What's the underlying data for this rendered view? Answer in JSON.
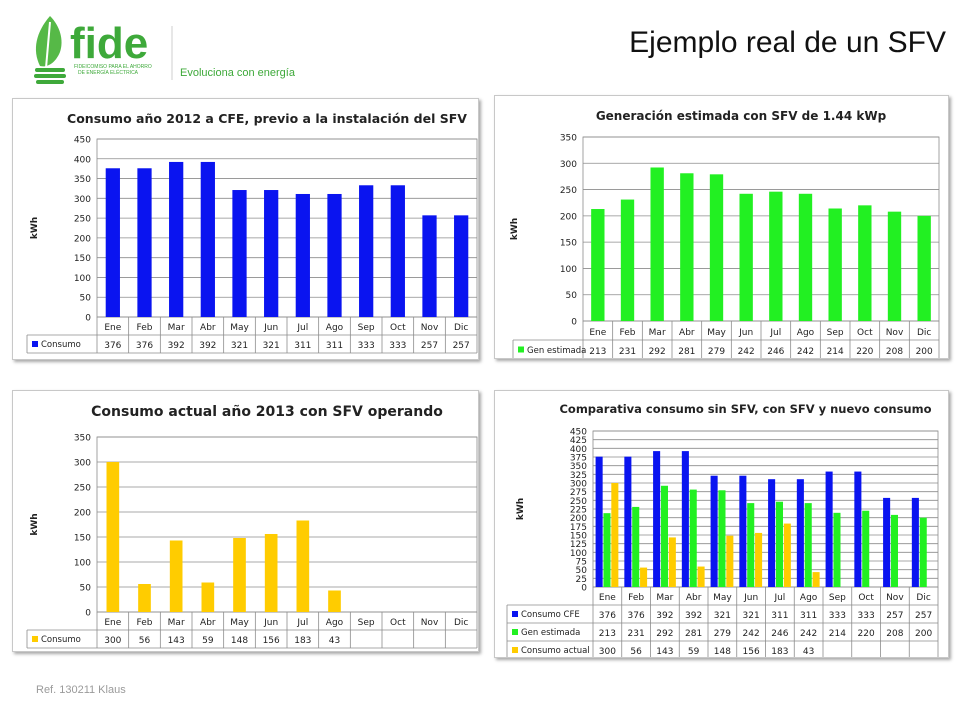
{
  "header": {
    "title": "Ejemplo real de un SFV",
    "brand": "fide",
    "brand_subtitle_1": "FIDEICOMISO PARA EL AHORRO",
    "brand_subtitle_2": "DE ENERGÍA ELÉCTRICA",
    "tagline": "Evoluciona con energía",
    "brand_color": "#3ea93a"
  },
  "footer": {
    "ref": "Ref. 130211 Klaus"
  },
  "colors": {
    "blue": "#0a14f0",
    "green": "#22f022",
    "yellow": "#ffcc00"
  },
  "chart_data": [
    {
      "type": "bar",
      "title": "Consumo año 2012  a CFE, previo a la instalación del SFV",
      "ylabel": "kWh",
      "ylim": [
        0,
        450
      ],
      "ystep": 50,
      "grid": true,
      "categories": [
        "Ene",
        "Feb",
        "Mar",
        "Abr",
        "May",
        "Jun",
        "Jul",
        "Ago",
        "Sep",
        "Oct",
        "Nov",
        "Dic"
      ],
      "series": [
        {
          "name": "Consumo",
          "color": "blue",
          "values": [
            376,
            376,
            392,
            392,
            321,
            321,
            311,
            311,
            333,
            333,
            257,
            257
          ]
        }
      ]
    },
    {
      "type": "bar",
      "title": "Generación estimada con SFV de 1.44 kWp",
      "ylabel": "kWh",
      "ylim": [
        0,
        350
      ],
      "ystep": 50,
      "grid": true,
      "categories": [
        "Ene",
        "Feb",
        "Mar",
        "Abr",
        "May",
        "Jun",
        "Jul",
        "Ago",
        "Sep",
        "Oct",
        "Nov",
        "Dic"
      ],
      "series": [
        {
          "name": "Gen estimada",
          "color": "green",
          "values": [
            213,
            231,
            292,
            281,
            279,
            242,
            246,
            242,
            214,
            220,
            208,
            200
          ]
        }
      ]
    },
    {
      "type": "bar",
      "title": "Consumo actual  año 2013 con SFV operando",
      "ylabel": "kWh",
      "ylim": [
        0,
        350
      ],
      "ystep": 50,
      "grid": true,
      "categories": [
        "Ene",
        "Feb",
        "Mar",
        "Abr",
        "May",
        "Jun",
        "Jul",
        "Ago",
        "Sep",
        "Oct",
        "Nov",
        "Dic"
      ],
      "series": [
        {
          "name": "Consumo",
          "color": "yellow",
          "values": [
            300,
            56,
            143,
            59,
            148,
            156,
            183,
            43,
            null,
            null,
            null,
            null
          ]
        }
      ]
    },
    {
      "type": "bar",
      "title": "Comparativa consumo sin SFV, con SFV y nuevo consumo",
      "ylabel": "kWh",
      "ylim": [
        0,
        450
      ],
      "ystep": 25,
      "grid": true,
      "categories": [
        "Ene",
        "Feb",
        "Mar",
        "Abr",
        "May",
        "Jun",
        "Jul",
        "Ago",
        "Sep",
        "Oct",
        "Nov",
        "Dic"
      ],
      "series": [
        {
          "name": "Consumo CFE",
          "color": "blue",
          "values": [
            376,
            376,
            392,
            392,
            321,
            321,
            311,
            311,
            333,
            333,
            257,
            257
          ]
        },
        {
          "name": "Gen estimada",
          "color": "green",
          "values": [
            213,
            231,
            292,
            281,
            279,
            242,
            246,
            242,
            214,
            220,
            208,
            200
          ]
        },
        {
          "name": "Consumo actual",
          "color": "yellow",
          "values": [
            300,
            56,
            143,
            59,
            148,
            156,
            183,
            43,
            null,
            null,
            null,
            null
          ]
        }
      ]
    }
  ]
}
